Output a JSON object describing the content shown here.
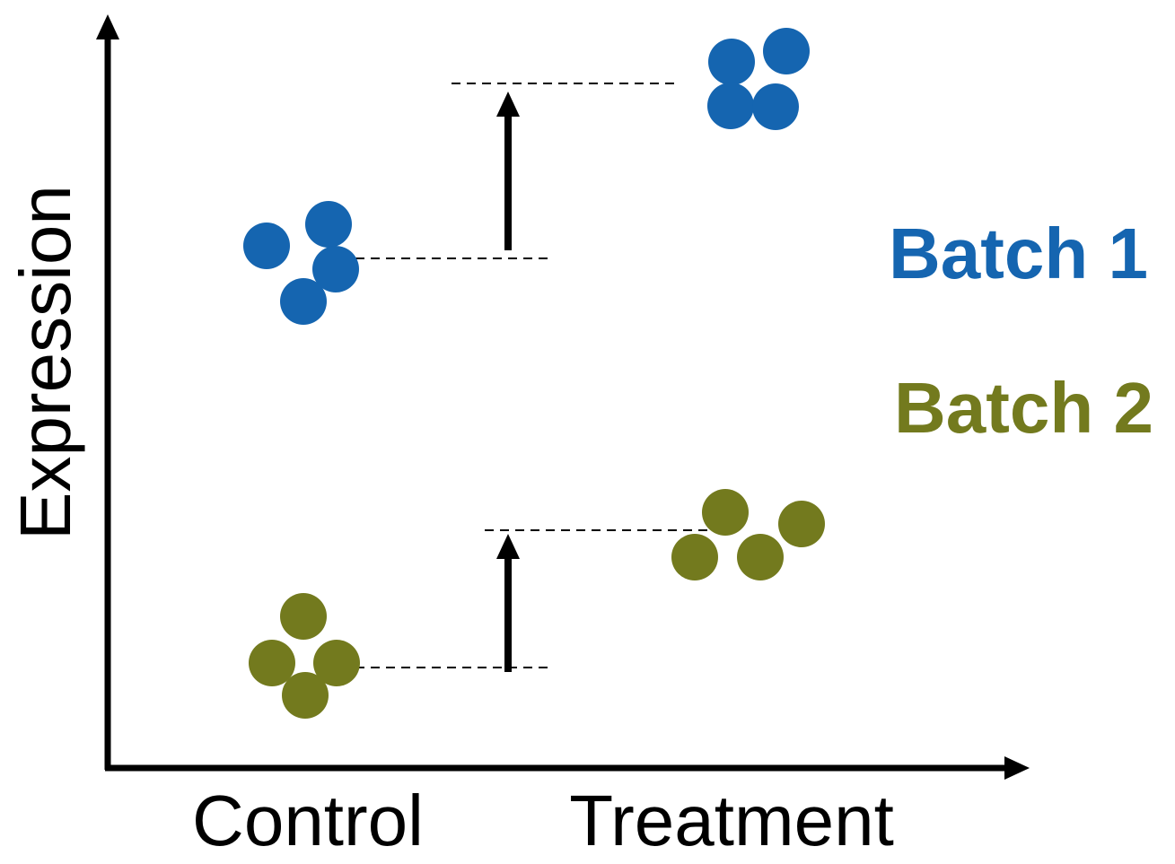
{
  "diagram": {
    "y_axis_label": "Expression",
    "x_categories": [
      "Control",
      "Treatment"
    ],
    "legend": [
      {
        "label": "Batch 1",
        "color": "#1565b0"
      },
      {
        "label": "Batch 2",
        "color": "#737a1e"
      }
    ]
  },
  "colors": {
    "axis": "#000000",
    "batch1": "#1565b0",
    "batch2": "#737a1e"
  }
}
